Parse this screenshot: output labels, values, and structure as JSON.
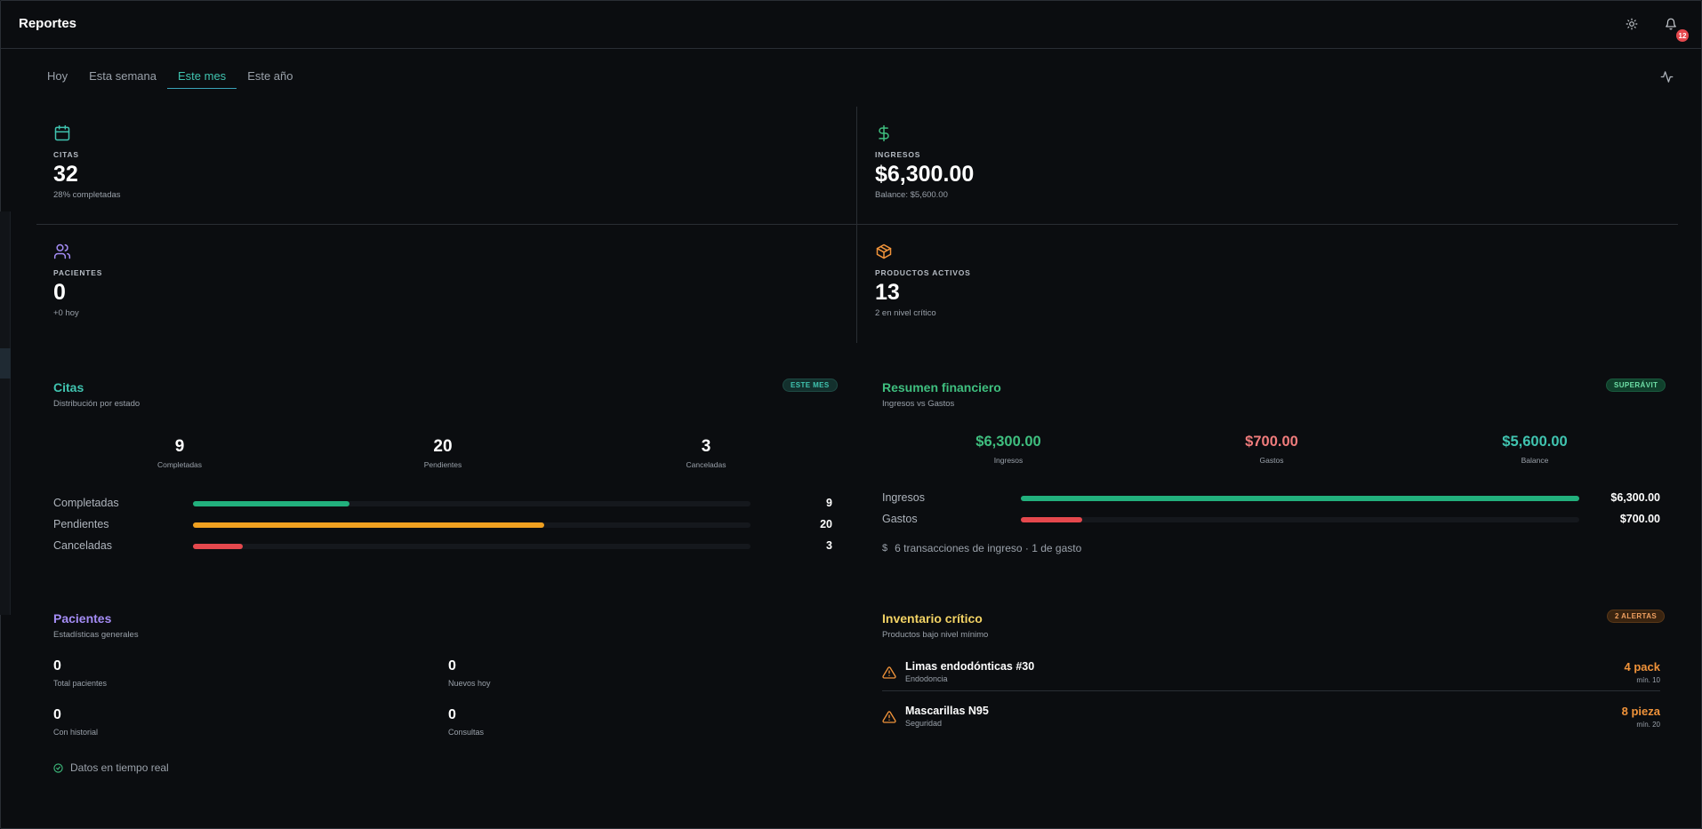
{
  "header": {
    "title": "Reportes",
    "notification_count": "12"
  },
  "tabs": [
    {
      "label": "Hoy"
    },
    {
      "label": "Esta semana"
    },
    {
      "label": "Este mes"
    },
    {
      "label": "Este año"
    }
  ],
  "active_tab": "Este mes",
  "stats": {
    "citas": {
      "label": "CITAS",
      "value": "32",
      "sub": "28% completadas",
      "icon": "calendar-icon",
      "color": "#40c4b0"
    },
    "ingresos": {
      "label": "INGRESOS",
      "value": "$6,300.00",
      "sub": "Balance: $5,600.00",
      "icon": "dollar-icon",
      "color": "#3fbf7f"
    },
    "pacientes": {
      "label": "PACIENTES",
      "value": "0",
      "sub": "+0 hoy",
      "icon": "users-icon",
      "color": "#a48cf5"
    },
    "productos": {
      "label": "PRODUCTOS ACTIVOS",
      "value": "13",
      "sub": "2 en nivel crítico",
      "icon": "package-icon",
      "color": "#f0933a"
    }
  },
  "citas_card": {
    "title": "Citas",
    "subtitle": "Distribución por estado",
    "pill": "ESTE MES",
    "summary": [
      {
        "value": "9",
        "label": "Completadas"
      },
      {
        "value": "20",
        "label": "Pendientes"
      },
      {
        "value": "3",
        "label": "Canceladas"
      }
    ],
    "bars": [
      {
        "label": "Completadas",
        "value": "9",
        "fraction": 0.28,
        "color": "#22b07d"
      },
      {
        "label": "Pendientes",
        "value": "20",
        "fraction": 0.63,
        "color": "#f0a020"
      },
      {
        "label": "Canceladas",
        "value": "3",
        "fraction": 0.09,
        "color": "#e5484d"
      }
    ]
  },
  "finance_card": {
    "title": "Resumen financiero",
    "subtitle": "Ingresos vs Gastos",
    "pill": "SUPERÁVIT",
    "summary": [
      {
        "value": "$6,300.00",
        "label": "Ingresos",
        "color": "#3fbf7f"
      },
      {
        "value": "$700.00",
        "label": "Gastos",
        "color": "#f07c7c"
      },
      {
        "value": "$5,600.00",
        "label": "Balance",
        "color": "#40c4b0"
      }
    ],
    "bars": [
      {
        "label": "Ingresos",
        "value": "$6,300.00",
        "fraction": 1.0,
        "color": "#22b07d"
      },
      {
        "label": "Gastos",
        "value": "$700.00",
        "fraction": 0.11,
        "color": "#e5484d"
      }
    ],
    "note": "6 transacciones de ingreso · 1 de gasto"
  },
  "patients_card": {
    "title": "Pacientes",
    "subtitle": "Estadísticas generales",
    "stats": [
      {
        "value": "0",
        "label": "Total pacientes"
      },
      {
        "value": "0",
        "label": "Nuevos hoy"
      },
      {
        "value": "0",
        "label": "Con historial"
      },
      {
        "value": "0",
        "label": "Consultas"
      }
    ],
    "note": "Datos en tiempo real"
  },
  "inventory_card": {
    "title": "Inventario crítico",
    "subtitle": "Productos bajo nivel mínimo",
    "pill": "2 ALERTAS",
    "items": [
      {
        "name": "Limas endodónticas #30",
        "category": "Endodoncia",
        "qty": "4 pack",
        "min": "mín. 10"
      },
      {
        "name": "Mascarillas N95",
        "category": "Seguridad",
        "qty": "8 pieza",
        "min": "mín. 20"
      }
    ]
  }
}
